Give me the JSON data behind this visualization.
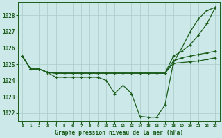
{
  "title": "Graphe pression niveau de la mer (hPa)",
  "bg_color": "#cce8e8",
  "grid_color": "#aacccc",
  "line_color": "#1a5c1a",
  "ylim": [
    1021.5,
    1028.8
  ],
  "xlim": [
    -0.5,
    23.5
  ],
  "yticks": [
    1022,
    1023,
    1024,
    1025,
    1026,
    1027,
    1028
  ],
  "xticks": [
    0,
    1,
    2,
    3,
    4,
    5,
    6,
    7,
    8,
    9,
    10,
    11,
    12,
    13,
    14,
    15,
    16,
    17,
    18,
    19,
    20,
    21,
    22,
    23
  ],
  "series": [
    [
      1025.5,
      1024.7,
      1024.7,
      1024.5,
      1024.2,
      1024.2,
      1024.2,
      1024.2,
      1024.2,
      1024.2,
      1024.0,
      1023.2,
      1023.7,
      1023.2,
      1021.8,
      1021.75,
      1021.75,
      1022.5,
      1025.1,
      1026.0,
      1027.0,
      1027.8,
      1028.3,
      1028.5
    ],
    [
      1025.5,
      1024.7,
      1024.7,
      1024.5,
      1024.45,
      1024.45,
      1024.45,
      1024.45,
      1024.45,
      1024.45,
      1024.45,
      1024.45,
      1024.45,
      1024.45,
      1024.45,
      1024.45,
      1024.45,
      1024.45,
      1025.05,
      1025.1,
      1025.15,
      1025.2,
      1025.3,
      1025.4
    ],
    [
      1025.5,
      1024.7,
      1024.7,
      1024.5,
      1024.45,
      1024.45,
      1024.45,
      1024.45,
      1024.45,
      1024.45,
      1024.45,
      1024.45,
      1024.45,
      1024.45,
      1024.45,
      1024.45,
      1024.45,
      1024.45,
      1025.2,
      1025.4,
      1025.5,
      1025.6,
      1025.7,
      1025.8
    ],
    [
      1025.5,
      1024.7,
      1024.7,
      1024.5,
      1024.45,
      1024.45,
      1024.45,
      1024.45,
      1024.45,
      1024.45,
      1024.45,
      1024.45,
      1024.45,
      1024.45,
      1024.45,
      1024.45,
      1024.45,
      1024.45,
      1025.5,
      1025.8,
      1026.2,
      1026.8,
      1027.5,
      1028.5
    ]
  ]
}
